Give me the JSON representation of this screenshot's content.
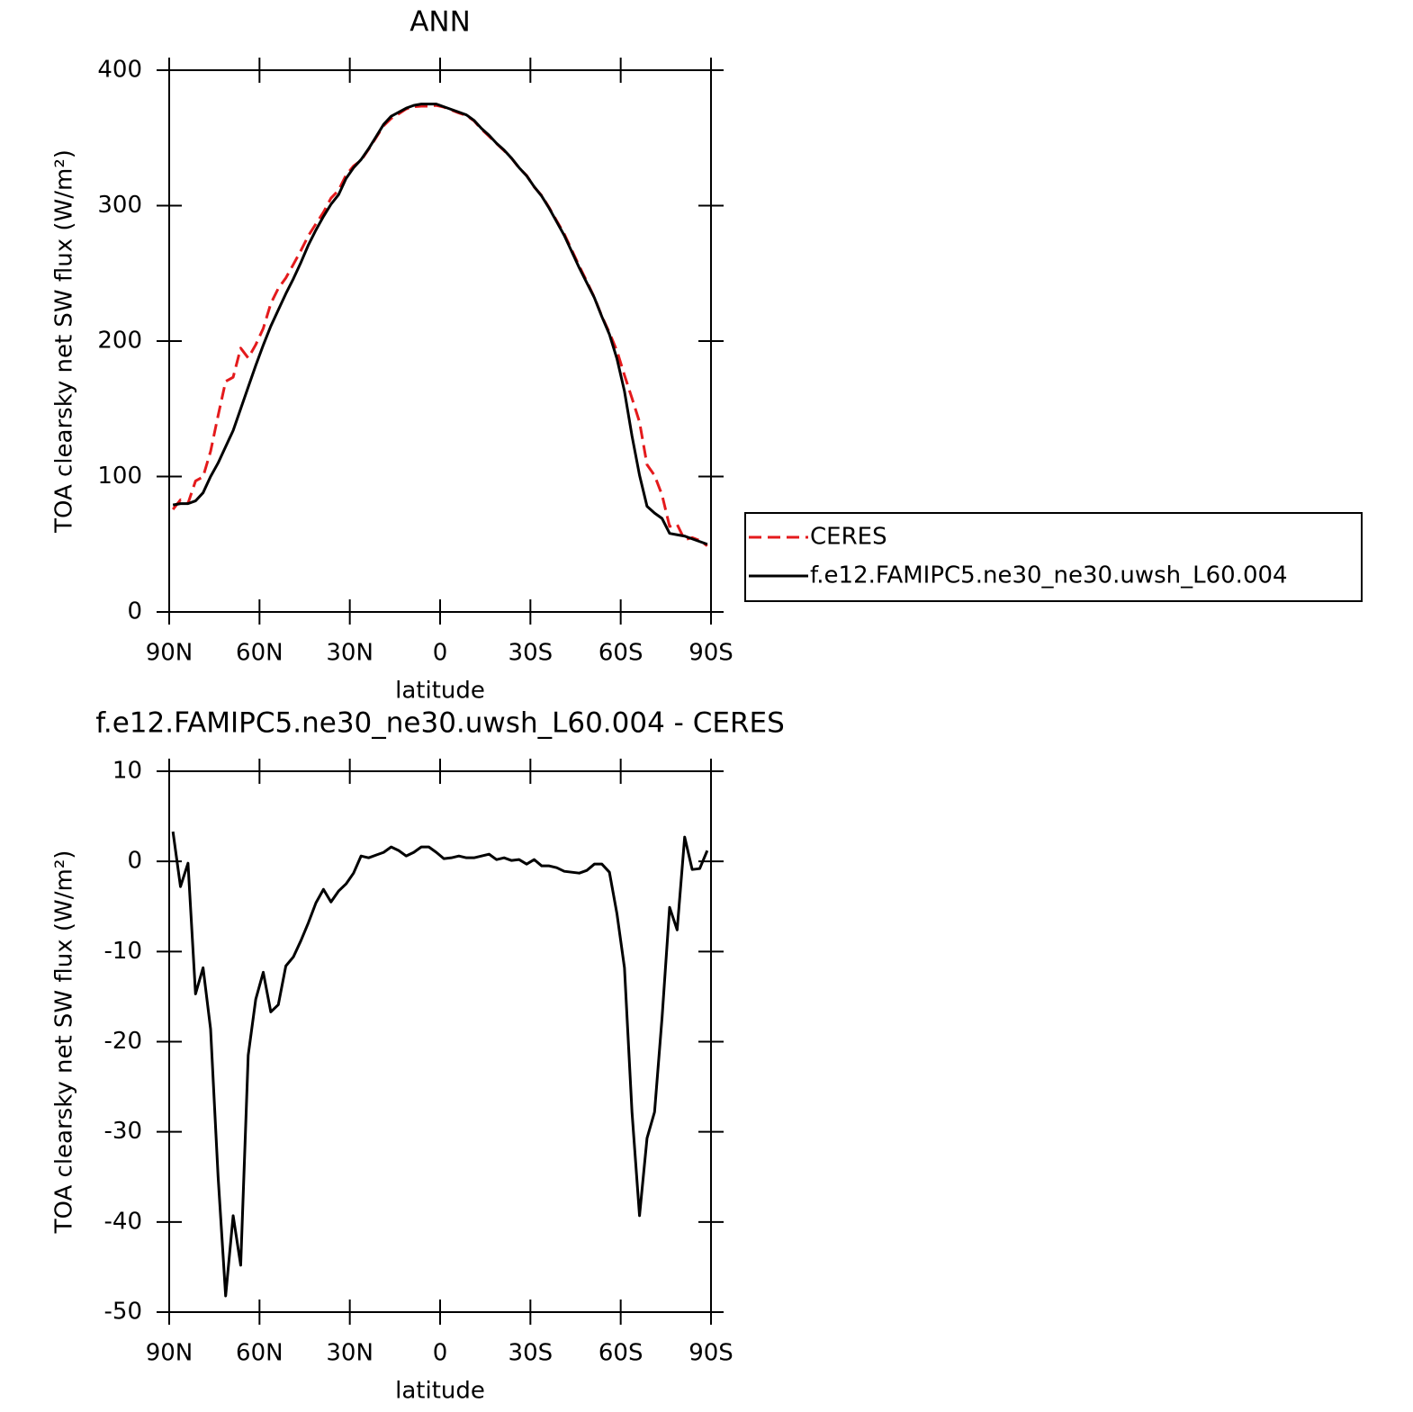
{
  "chart_data": [
    {
      "type": "line",
      "title": "ANN",
      "xlabel": "latitude",
      "ylabel": "TOA clearsky net SW flux (W/m²)",
      "x": [
        88.75,
        86.25,
        83.75,
        81.25,
        78.75,
        76.25,
        73.75,
        71.25,
        68.75,
        66.25,
        63.75,
        61.25,
        58.75,
        56.25,
        53.75,
        51.25,
        48.75,
        46.25,
        43.75,
        41.25,
        38.75,
        36.25,
        33.75,
        31.25,
        28.75,
        26.25,
        23.75,
        21.25,
        18.75,
        16.25,
        13.75,
        11.25,
        8.75,
        6.25,
        3.75,
        1.25,
        -1.25,
        -3.75,
        -6.25,
        -8.75,
        -11.25,
        -13.75,
        -16.25,
        -18.75,
        -21.25,
        -23.75,
        -26.25,
        -28.75,
        -31.25,
        -33.75,
        -36.25,
        -38.75,
        -41.25,
        -43.75,
        -46.25,
        -48.75,
        -51.25,
        -53.75,
        -56.25,
        -58.75,
        -61.25,
        -63.75,
        -66.25,
        -68.75,
        -71.25,
        -73.75,
        -76.25,
        -78.75,
        -81.25,
        -83.75,
        -86.25,
        -88.75
      ],
      "xlim": [
        90,
        -90
      ],
      "xticks": [
        {
          "value": 90,
          "label": "90N"
        },
        {
          "value": 60,
          "label": "60N"
        },
        {
          "value": 30,
          "label": "30N"
        },
        0,
        {
          "value": -30,
          "label": "30S"
        },
        {
          "value": -60,
          "label": "60S"
        },
        {
          "value": -90,
          "label": "90S"
        }
      ],
      "ylim": [
        0,
        400
      ],
      "yticks": [
        0,
        100,
        200,
        300,
        400
      ],
      "legend": "right",
      "series": [
        {
          "name": "CERES",
          "color": "#e41a1c",
          "dash": "dashed",
          "values": [
            75.7,
            82.8,
            80.2,
            96.7,
            99.8,
            118.6,
            145,
            170.2,
            173.3,
            194.8,
            187.5,
            197.3,
            209.3,
            227.7,
            238.9,
            246.6,
            256.6,
            266.8,
            277.8,
            286.6,
            295.1,
            305.5,
            311.3,
            322.5,
            329.3,
            333.4,
            341.6,
            350.3,
            359,
            364.4,
            367.8,
            371.4,
            373,
            373.4,
            373.4,
            374,
            372.7,
            370.6,
            368.4,
            366.6,
            362.6,
            356.4,
            351.2,
            345.8,
            340.6,
            334.9,
            327.8,
            322.3,
            313.8,
            307.5,
            298.5,
            288.7,
            279.1,
            267.2,
            255.3,
            244,
            232.3,
            218.3,
            206.2,
            192.8,
            174.8,
            157.8,
            140.3,
            108.7,
            100.8,
            86.3,
            63.1,
            64.6,
            53.3,
            54.9,
            52.8,
            48.8
          ]
        },
        {
          "name": "f.e12.FAMIPC5.ne30_ne30.uwsh_L60.004",
          "color": "#000000",
          "dash": "solid",
          "values": [
            79,
            80,
            80,
            82,
            88,
            100,
            110,
            122,
            134,
            150,
            166,
            182,
            197,
            211,
            223,
            235,
            246,
            258,
            271,
            282,
            292,
            301,
            308,
            320,
            328,
            334,
            342,
            351,
            360,
            366,
            369,
            372,
            374,
            375,
            375,
            375,
            373,
            371,
            369,
            367,
            363,
            357,
            352,
            346,
            341,
            335,
            328,
            322,
            314,
            307,
            298,
            288,
            278,
            266,
            254,
            243,
            232,
            218,
            205,
            187,
            163,
            130,
            101,
            78,
            73,
            69,
            58,
            57,
            56,
            54,
            52,
            50
          ]
        }
      ]
    },
    {
      "type": "line",
      "title": "f.e12.FAMIPC5.ne30_ne30.uwsh_L60.004 - CERES",
      "xlabel": "latitude",
      "ylabel": "TOA clearsky net SW flux (W/m²)",
      "x": [
        88.75,
        86.25,
        83.75,
        81.25,
        78.75,
        76.25,
        73.75,
        71.25,
        68.75,
        66.25,
        63.75,
        61.25,
        58.75,
        56.25,
        53.75,
        51.25,
        48.75,
        46.25,
        43.75,
        41.25,
        38.75,
        36.25,
        33.75,
        31.25,
        28.75,
        26.25,
        23.75,
        21.25,
        18.75,
        16.25,
        13.75,
        11.25,
        8.75,
        6.25,
        3.75,
        1.25,
        -1.25,
        -3.75,
        -6.25,
        -8.75,
        -11.25,
        -13.75,
        -16.25,
        -18.75,
        -21.25,
        -23.75,
        -26.25,
        -28.75,
        -31.25,
        -33.75,
        -36.25,
        -38.75,
        -41.25,
        -43.75,
        -46.25,
        -48.75,
        -51.25,
        -53.75,
        -56.25,
        -58.75,
        -61.25,
        -63.75,
        -66.25,
        -68.75,
        -71.25,
        -73.75,
        -76.25,
        -78.75,
        -81.25,
        -83.75,
        -86.25,
        -88.75
      ],
      "xlim": [
        90,
        -90
      ],
      "xticks": [
        {
          "value": 90,
          "label": "90N"
        },
        {
          "value": 60,
          "label": "60N"
        },
        {
          "value": 30,
          "label": "30N"
        },
        0,
        {
          "value": -30,
          "label": "30S"
        },
        {
          "value": -60,
          "label": "60S"
        },
        {
          "value": -90,
          "label": "90S"
        }
      ],
      "ylim": [
        -50,
        10
      ],
      "yticks": [
        -50,
        -40,
        -30,
        -20,
        -10,
        0,
        10
      ],
      "series": [
        {
          "color": "#000000",
          "dash": "solid",
          "values": [
            3.3,
            -2.8,
            -0.2,
            -14.7,
            -11.8,
            -18.6,
            -35,
            -48.2,
            -39.3,
            -44.8,
            -21.5,
            -15.3,
            -12.3,
            -16.7,
            -15.9,
            -11.6,
            -10.6,
            -8.8,
            -6.8,
            -4.6,
            -3.1,
            -4.5,
            -3.3,
            -2.5,
            -1.3,
            0.6,
            0.4,
            0.7,
            1,
            1.6,
            1.2,
            0.6,
            1,
            1.6,
            1.6,
            1,
            0.3,
            0.4,
            0.6,
            0.4,
            0.4,
            0.6,
            0.8,
            0.2,
            0.4,
            0.1,
            0.2,
            -0.3,
            0.2,
            -0.5,
            -0.5,
            -0.7,
            -1.1,
            -1.2,
            -1.3,
            -1,
            -0.3,
            -0.3,
            -1.2,
            -5.8,
            -11.8,
            -27.8,
            -39.3,
            -30.7,
            -27.8,
            -17.3,
            -5.1,
            -7.6,
            2.7,
            -0.9,
            -0.8,
            1.2
          ]
        }
      ]
    }
  ]
}
